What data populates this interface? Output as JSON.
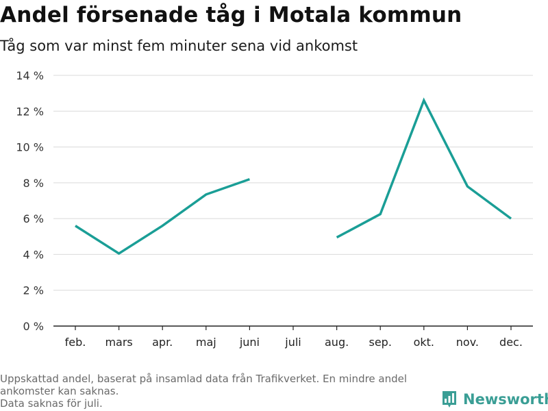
{
  "header": {
    "title": "Andel försenade tåg i Motala kommun",
    "subtitle": "Tåg som var minst fem minuter sena vid ankomst"
  },
  "footnote": {
    "line1": "Uppskattad andel, baserat på insamlad data från Trafikverket. En mindre andel ankomster kan saknas.",
    "line2": "Data saknas för juli."
  },
  "brand": {
    "name": "Newsworthy",
    "icon": "newsworthy-logo-icon",
    "color": "#3a9e95"
  },
  "chart_data": {
    "type": "line",
    "categories": [
      "feb.",
      "mars",
      "apr.",
      "maj",
      "juni",
      "juli",
      "aug.",
      "sep.",
      "okt.",
      "nov.",
      "dec."
    ],
    "series": [
      {
        "values": [
          5.6,
          4.05,
          5.6,
          7.35,
          8.2,
          null,
          4.95,
          6.25,
          12.6,
          7.8,
          6.0
        ],
        "color": "#1a9e96"
      }
    ],
    "ylim": [
      0,
      14
    ],
    "yticks": [
      0,
      2,
      4,
      6,
      8,
      10,
      12,
      14
    ],
    "ytick_labels": [
      "0 %",
      "2 %",
      "4 %",
      "6 %",
      "8 %",
      "10 %",
      "12 %",
      "14 %"
    ],
    "grid": true,
    "xlabel": "",
    "ylabel": ""
  }
}
